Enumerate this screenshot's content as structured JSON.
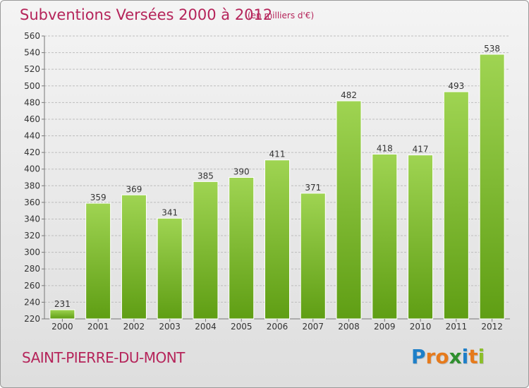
{
  "header": {
    "title": "Subventions Versées 2000 à 2012",
    "unit_note": "(en milliers d'€)"
  },
  "footer": {
    "commune": "SAINT-PIERRE-DU-MONT",
    "logo_text": "Proxiti",
    "logo_letters": [
      {
        "ch": "P",
        "color": "#1e7fc8"
      },
      {
        "ch": "r",
        "color": "#e67a1c"
      },
      {
        "ch": "o",
        "color": "#e67a1c"
      },
      {
        "ch": "x",
        "color": "#2f8f2f"
      },
      {
        "ch": "i",
        "color": "#1e7fc8"
      },
      {
        "ch": "t",
        "color": "#e67a1c"
      },
      {
        "ch": "i",
        "color": "#8bbf2a"
      }
    ]
  },
  "colors": {
    "accent": "#b5245a",
    "bar_light": "#9fd452",
    "bar_dark": "#5f9e14",
    "grid": "#bdbdbd"
  },
  "chart_data": {
    "type": "bar",
    "categories": [
      "2000",
      "2001",
      "2002",
      "2003",
      "2004",
      "2005",
      "2006",
      "2007",
      "2008",
      "2009",
      "2010",
      "2011",
      "2012"
    ],
    "values": [
      231,
      359,
      369,
      341,
      385,
      390,
      411,
      371,
      482,
      418,
      417,
      493,
      538
    ],
    "ylim": [
      220,
      560
    ],
    "yticks": [
      220,
      240,
      260,
      280,
      300,
      320,
      340,
      360,
      380,
      400,
      420,
      440,
      460,
      480,
      500,
      520,
      540,
      560
    ],
    "grid": true,
    "data_labels": true
  }
}
